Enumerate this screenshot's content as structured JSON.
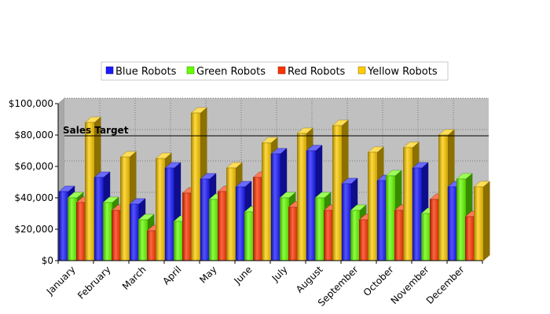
{
  "chart_data": {
    "type": "bar",
    "categories": [
      "January",
      "February",
      "March",
      "April",
      "May",
      "June",
      "July",
      "August",
      "September",
      "October",
      "November",
      "December"
    ],
    "series": [
      {
        "name": "Blue Robots",
        "color": "#1a1aff",
        "values": [
          44000,
          53000,
          36000,
          59000,
          52000,
          47000,
          68000,
          70000,
          49000,
          51000,
          59000,
          47000
        ]
      },
      {
        "name": "Green Robots",
        "color": "#66ff00",
        "values": [
          40000,
          37000,
          26000,
          25000,
          39000,
          31000,
          40000,
          40000,
          32000,
          54000,
          30000,
          52000
        ]
      },
      {
        "name": "Red Robots",
        "color": "#ff3300",
        "values": [
          37000,
          32000,
          19000,
          43000,
          44000,
          53000,
          34000,
          32000,
          26000,
          32000,
          39000,
          28000
        ]
      },
      {
        "name": "Yellow Robots",
        "color": "#ffcc00",
        "values": [
          88000,
          66000,
          65000,
          94000,
          59000,
          75000,
          81000,
          86000,
          69000,
          72000,
          80000,
          47000
        ]
      }
    ],
    "reference_line": {
      "label": "Sales Target",
      "value": 78000
    },
    "ylim": [
      0,
      100000
    ],
    "yticks": [
      "$0",
      "$20,000",
      "$40,000",
      "$60,000",
      "$80,000",
      "$100,000"
    ],
    "grid": true,
    "legend_position": "top-center",
    "plot_background": "#c0c0c0"
  }
}
